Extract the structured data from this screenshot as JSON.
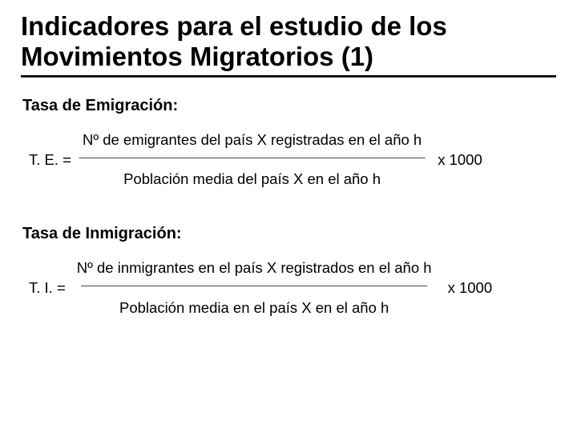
{
  "title": "Indicadores para el estudio de los Movimientos Migratorios (1)",
  "colors": {
    "background": "#ffffff",
    "text": "#000000",
    "rule_top": "#000000",
    "rule_bottom": "#404040"
  },
  "typography": {
    "title_family": "Segoe UI",
    "title_size_pt": 25,
    "title_weight": 700,
    "body_family": "Segoe UI",
    "heading_size_pt": 15,
    "body_size_pt": 14
  },
  "sections": [
    {
      "heading": "Tasa de Emigración:",
      "lhs": "T. E. =",
      "numerator": "Nº de emigrantes del país X registradas en el año h",
      "rule": "_____________________________________________",
      "denominator": "Población media del país X en el año h",
      "multiplier": "x 1000"
    },
    {
      "heading": "Tasa de Inmigración:",
      "lhs": "T. I. =",
      "numerator": "Nº de inmigrantes en el país X registrados en el año h",
      "rule": "_____________________________________________",
      "denominator": "Población media en el país X en el año h",
      "multiplier": "x 1000"
    }
  ]
}
